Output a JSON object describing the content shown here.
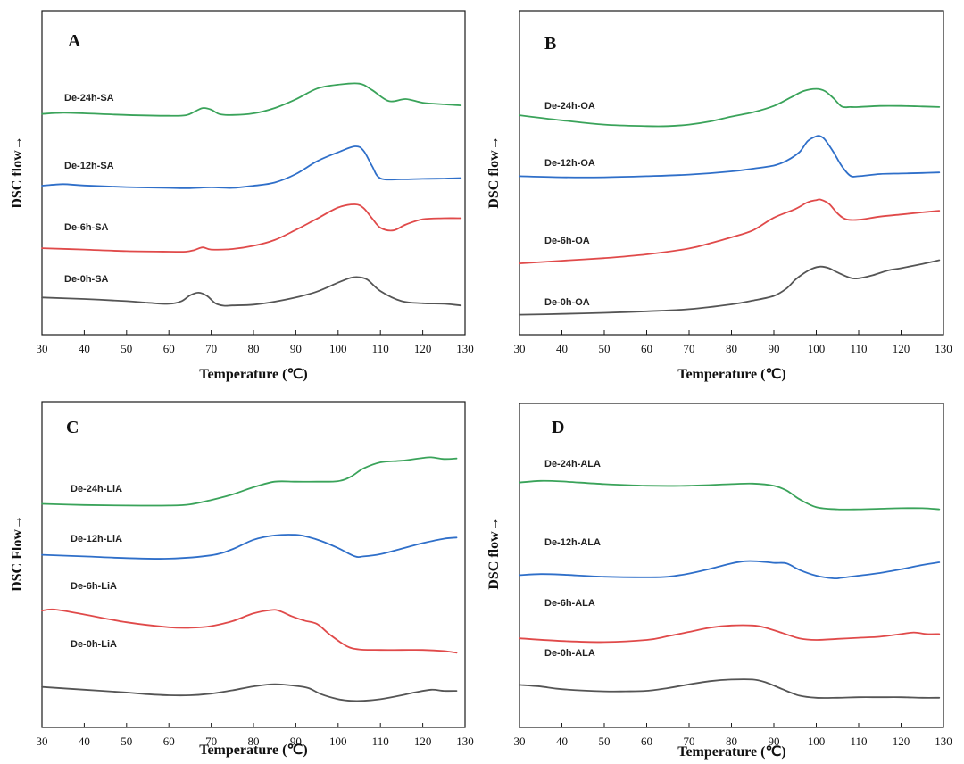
{
  "chart_data": [
    {
      "type": "line",
      "panel": "A",
      "xlabel": "Temperature (℃)",
      "ylabel": "DSC flow→",
      "xlim": [
        30,
        130
      ],
      "xticks": [
        30,
        40,
        50,
        60,
        70,
        80,
        90,
        100,
        110,
        120,
        130
      ],
      "ylim": [
        0,
        100
      ],
      "series": [
        {
          "name": "De-24h-SA",
          "color": "#3aa35a",
          "x": [
            30,
            35,
            40,
            50,
            60,
            64,
            66,
            68,
            70,
            72,
            75,
            80,
            85,
            90,
            95,
            100,
            105,
            108,
            112,
            116,
            120,
            125,
            129
          ],
          "y": [
            82,
            82.4,
            82.2,
            81.6,
            81.3,
            81.5,
            82.8,
            84.2,
            83.6,
            81.9,
            81.6,
            82.2,
            84.2,
            87.5,
            91.5,
            93,
            93.4,
            91,
            86.8,
            87.6,
            86.2,
            85.6,
            85.2
          ]
        },
        {
          "name": "De-12h-SA",
          "color": "#2f6fc9",
          "x": [
            30,
            35,
            40,
            50,
            60,
            65,
            70,
            75,
            80,
            85,
            90,
            95,
            100,
            104,
            106,
            108,
            110,
            115,
            120,
            125,
            129
          ],
          "y": [
            55,
            55.6,
            55.1,
            54.5,
            54.2,
            54.1,
            54.4,
            54.2,
            55,
            56.2,
            59.4,
            64.2,
            67.6,
            69.8,
            68.2,
            62.5,
            57.8,
            57.4,
            57.6,
            57.7,
            57.9
          ]
        },
        {
          "name": "De-6h-SA",
          "color": "#e04a4a",
          "x": [
            30,
            40,
            50,
            60,
            64,
            66,
            68,
            70,
            75,
            80,
            85,
            90,
            95,
            100,
            104,
            106,
            108,
            110,
            113,
            116,
            120,
            125,
            129
          ],
          "y": [
            31.5,
            31,
            30.4,
            30.2,
            30.2,
            30.8,
            31.8,
            31,
            31.2,
            32.4,
            34.6,
            38.4,
            42.6,
            46.8,
            48,
            46.6,
            42.8,
            39.2,
            38.2,
            40.4,
            42.4,
            42.8,
            42.8
          ]
        },
        {
          "name": "De-0h-SA",
          "color": "#555555",
          "x": [
            30,
            40,
            50,
            55,
            60,
            63,
            65,
            67,
            69,
            71,
            73,
            75,
            80,
            85,
            90,
            95,
            100,
            103,
            105,
            107,
            110,
            115,
            120,
            125,
            129
          ],
          "y": [
            13,
            12.4,
            11.6,
            11,
            10.6,
            11.6,
            13.8,
            14.8,
            13.6,
            10.8,
            9.9,
            10,
            10.3,
            11.4,
            13,
            15.2,
            18.6,
            20.4,
            20.6,
            19.6,
            15.4,
            11.6,
            10.8,
            10.6,
            10
          ]
        }
      ]
    },
    {
      "type": "line",
      "panel": "B",
      "xlabel": "Temperature (℃)",
      "ylabel": "DSC flow→",
      "xlim": [
        30,
        130
      ],
      "xticks": [
        30,
        40,
        50,
        60,
        70,
        80,
        90,
        100,
        110,
        120,
        130
      ],
      "ylim": [
        0,
        100
      ],
      "series": [
        {
          "name": "De-24h-OA",
          "color": "#3aa35a",
          "x": [
            30,
            40,
            50,
            60,
            65,
            70,
            75,
            80,
            85,
            90,
            94,
            97,
            100,
            102,
            104,
            106,
            108,
            110,
            115,
            120,
            125,
            129
          ],
          "y": [
            81.5,
            79.6,
            78,
            77.4,
            77.4,
            78,
            79.2,
            81,
            82.6,
            85,
            88.2,
            90.6,
            91.4,
            90.6,
            88,
            84.8,
            84.6,
            84.6,
            85,
            85,
            84.8,
            84.6
          ]
        },
        {
          "name": "De-12h-OA",
          "color": "#2f6fc9",
          "x": [
            30,
            40,
            50,
            60,
            70,
            80,
            85,
            90,
            93,
            96,
            98,
            100,
            101,
            102,
            104,
            106,
            108,
            110,
            115,
            120,
            125,
            129
          ],
          "y": [
            58.6,
            58.2,
            58.2,
            58.6,
            59.2,
            60.4,
            61.4,
            62.6,
            64.4,
            67.6,
            71.8,
            73.6,
            73.6,
            72.4,
            67.8,
            62.4,
            58.8,
            58.6,
            59.4,
            59.6,
            59.8,
            60
          ]
        },
        {
          "name": "De-6h-OA",
          "color": "#e04a4a",
          "x": [
            30,
            40,
            50,
            60,
            70,
            75,
            80,
            85,
            90,
            95,
            98,
            100,
            101,
            103,
            105,
            107,
            110,
            115,
            120,
            125,
            129
          ],
          "y": [
            25.8,
            26.8,
            27.8,
            29.2,
            31.4,
            33.4,
            35.6,
            38.2,
            43,
            46.2,
            48.8,
            49.6,
            49.8,
            48.2,
            44.6,
            42.4,
            42.2,
            43.4,
            44.2,
            45,
            45.6
          ]
        },
        {
          "name": "De-0h-OA",
          "color": "#555555",
          "x": [
            30,
            40,
            50,
            60,
            70,
            80,
            85,
            90,
            93,
            95,
            97,
            99,
            101,
            103,
            105,
            108,
            110,
            113,
            117,
            120,
            125,
            129
          ],
          "y": [
            6.5,
            6.8,
            7.2,
            7.8,
            8.6,
            10.4,
            11.8,
            13.6,
            16.4,
            19.6,
            22,
            23.8,
            24.6,
            24,
            22.4,
            20.4,
            20.2,
            21.2,
            23.2,
            24,
            25.6,
            27
          ]
        }
      ]
    },
    {
      "type": "line",
      "panel": "C",
      "xlabel": "Temperature (℃)",
      "ylabel": "DSC Flow→",
      "xlim": [
        30,
        130
      ],
      "xticks": [
        30,
        40,
        50,
        60,
        70,
        80,
        90,
        100,
        110,
        120,
        130
      ],
      "ylim": [
        0,
        100
      ],
      "series": [
        {
          "name": "De-24h-LiA",
          "color": "#3aa35a",
          "x": [
            30,
            40,
            50,
            60,
            65,
            70,
            75,
            80,
            85,
            90,
            95,
            100,
            103,
            106,
            110,
            115,
            120,
            122,
            125,
            128
          ],
          "y": [
            80.8,
            80.4,
            80.2,
            80.2,
            80.6,
            82.2,
            84.2,
            86.8,
            88.8,
            88.8,
            88.8,
            89,
            90.6,
            93.6,
            95.8,
            96.4,
            97.4,
            97.6,
            97,
            97.2
          ]
        },
        {
          "name": "De-12h-LiA",
          "color": "#2f6fc9",
          "x": [
            30,
            40,
            50,
            60,
            70,
            75,
            80,
            85,
            90,
            93,
            96,
            100,
            104,
            106,
            110,
            115,
            120,
            125,
            128
          ],
          "y": [
            62.4,
            61.8,
            61.2,
            61,
            62.2,
            64.4,
            67.8,
            69.4,
            69.6,
            68.8,
            67.4,
            64.8,
            61.8,
            61.8,
            62.6,
            64.6,
            66.6,
            68.2,
            68.6
          ]
        },
        {
          "name": "De-6h-LiA",
          "color": "#e04a4a",
          "x": [
            30,
            33,
            40,
            50,
            60,
            65,
            70,
            75,
            80,
            84,
            86,
            89,
            92,
            95,
            98,
            102,
            105,
            110,
            115,
            120,
            125,
            128
          ],
          "y": [
            42.2,
            42.6,
            40.8,
            38,
            36.2,
            36,
            36.6,
            38.4,
            41.2,
            42.4,
            42.2,
            40.2,
            38.6,
            37.4,
            33.6,
            29.4,
            28.2,
            28,
            28,
            28,
            27.6,
            27
          ]
        },
        {
          "name": "De-0h-LiA",
          "color": "#555555",
          "x": [
            30,
            40,
            50,
            55,
            60,
            65,
            70,
            75,
            80,
            85,
            90,
            93,
            96,
            100,
            103,
            106,
            110,
            115,
            118,
            122,
            125,
            128
          ],
          "y": [
            14.6,
            13.6,
            12.6,
            12,
            11.6,
            11.6,
            12.2,
            13.4,
            14.8,
            15.6,
            15,
            14.2,
            12,
            10.2,
            9.6,
            9.6,
            10.2,
            11.6,
            12.6,
            13.6,
            13.2,
            13.2
          ]
        }
      ]
    },
    {
      "type": "line",
      "panel": "D",
      "xlabel": "Temperature (℃)",
      "ylabel": "DSC flow→",
      "xlim": [
        30,
        130
      ],
      "xticks": [
        30,
        40,
        50,
        60,
        70,
        80,
        90,
        100,
        110,
        120,
        130
      ],
      "ylim": [
        0,
        100
      ],
      "series": [
        {
          "name": "De-24h-ALA",
          "color": "#3aa35a",
          "x": [
            30,
            35,
            40,
            50,
            60,
            70,
            80,
            85,
            90,
            93,
            96,
            100,
            105,
            110,
            115,
            120,
            125,
            129
          ],
          "y": [
            89.8,
            90.4,
            90.2,
            89.2,
            88.6,
            88.6,
            89.2,
            89.4,
            88.6,
            86.8,
            83.6,
            80.6,
            79.8,
            79.8,
            80,
            80.2,
            80.2,
            79.8
          ]
        },
        {
          "name": "De-12h-ALA",
          "color": "#2f6fc9",
          "x": [
            30,
            35,
            40,
            50,
            60,
            65,
            70,
            75,
            80,
            83,
            86,
            90,
            93,
            96,
            100,
            104,
            106,
            110,
            115,
            120,
            125,
            129
          ],
          "y": [
            55.2,
            55.6,
            55.4,
            54.6,
            54.4,
            54.6,
            55.8,
            57.6,
            59.6,
            60.4,
            60.4,
            59.8,
            59.6,
            57.2,
            55,
            54,
            54.2,
            55,
            56,
            57.4,
            59,
            60
          ]
        },
        {
          "name": "De-6h-ALA",
          "color": "#e04a4a",
          "x": [
            30,
            40,
            50,
            60,
            65,
            70,
            75,
            80,
            85,
            88,
            92,
            96,
            100,
            105,
            110,
            115,
            120,
            123,
            126,
            129
          ],
          "y": [
            31.6,
            30.6,
            30.2,
            31,
            32.4,
            34,
            35.6,
            36.4,
            36.4,
            35.6,
            33.6,
            31.6,
            31,
            31.4,
            31.8,
            32.2,
            33.2,
            33.8,
            33.2,
            33.2
          ]
        },
        {
          "name": "De-0h-ALA",
          "color": "#555555",
          "x": [
            30,
            35,
            40,
            50,
            55,
            60,
            65,
            70,
            75,
            80,
            85,
            88,
            92,
            96,
            100,
            105,
            110,
            115,
            120,
            125,
            129
          ],
          "y": [
            14.2,
            13.6,
            12.6,
            11.8,
            11.8,
            12,
            13,
            14.4,
            15.6,
            16.2,
            16.2,
            15.2,
            12.6,
            10.2,
            9.4,
            9.4,
            9.6,
            9.6,
            9.6,
            9.4,
            9.4
          ]
        }
      ]
    }
  ]
}
